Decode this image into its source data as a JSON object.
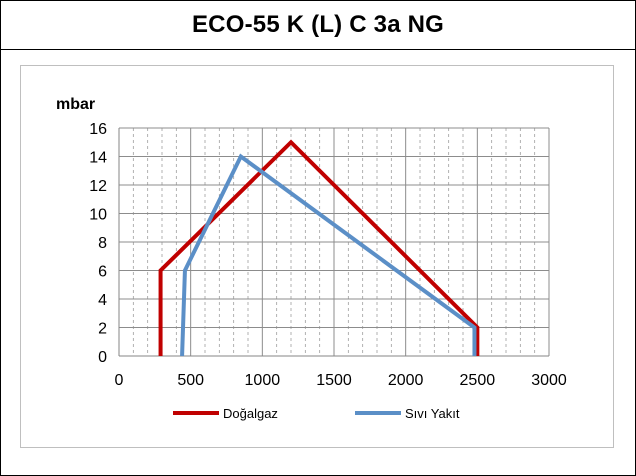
{
  "page_title": "ECO-55 K (L) C 3a NG",
  "chart_data": {
    "type": "line",
    "ylabel": "mbar",
    "xlim": [
      0,
      3000
    ],
    "ylim": [
      0,
      16
    ],
    "x_ticks": [
      0,
      500,
      1000,
      1500,
      2000,
      2500,
      3000
    ],
    "y_ticks": [
      0,
      2,
      4,
      6,
      8,
      10,
      12,
      14,
      16
    ],
    "grid": true,
    "legend_position": "bottom",
    "series": [
      {
        "name": "Doğalgaz",
        "color": "#c00000",
        "points": [
          [
            290,
            0
          ],
          [
            290,
            6
          ],
          [
            1200,
            15
          ],
          [
            2500,
            2
          ],
          [
            2500,
            0
          ]
        ]
      },
      {
        "name": "Sıvı Yakıt",
        "color": "#5b8fc7",
        "points": [
          [
            440,
            0
          ],
          [
            460,
            6
          ],
          [
            850,
            14
          ],
          [
            2480,
            2
          ],
          [
            2480,
            0
          ]
        ]
      }
    ]
  }
}
